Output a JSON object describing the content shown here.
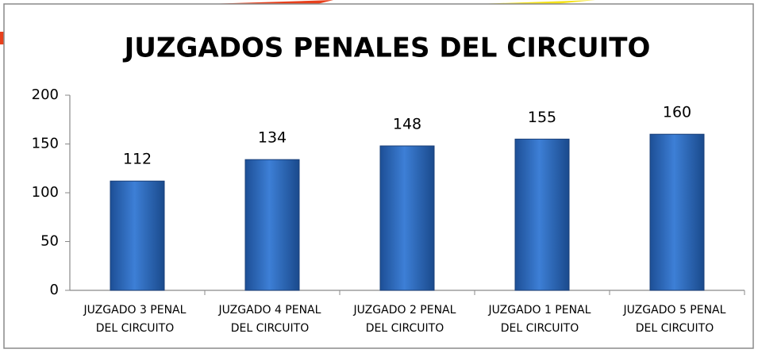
{
  "chart_data": {
    "type": "bar",
    "title": "JUZGADOS PENALES DEL CIRCUITO",
    "categories": [
      [
        "JUZGADO 3 PENAL",
        "DEL CIRCUITO"
      ],
      [
        "JUZGADO 4 PENAL",
        "DEL CIRCUITO"
      ],
      [
        "JUZGADO 2 PENAL",
        "DEL CIRCUITO"
      ],
      [
        "JUZGADO 1 PENAL",
        "DEL CIRCUITO"
      ],
      [
        "JUZGADO 5 PENAL",
        "DEL CIRCUITO"
      ]
    ],
    "values": [
      112,
      134,
      148,
      155,
      160
    ],
    "color": "#2f6cc0",
    "ylim": [
      0,
      200
    ],
    "yticks": [
      0,
      50,
      100,
      150,
      200
    ],
    "grid": false
  }
}
